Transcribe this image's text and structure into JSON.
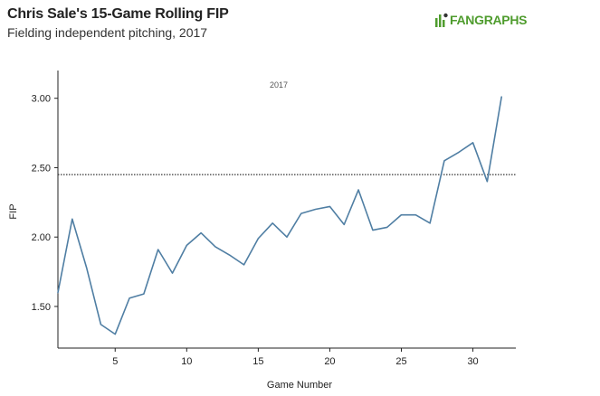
{
  "header": {
    "title": "Chris Sale's 15-Game Rolling FIP",
    "subtitle": "Fielding independent pitching, 2017",
    "brand": "FANGRAPHS",
    "brand_icon": "fangraphs-logo-icon"
  },
  "chart_data": {
    "type": "line",
    "title": "Chris Sale's 15-Game Rolling FIP",
    "subtitle": "Fielding independent pitching, 2017",
    "xlabel": "Game Number",
    "ylabel": "FIP",
    "xlim": [
      1,
      33
    ],
    "ylim": [
      1.2,
      3.2
    ],
    "xticks": [
      5,
      10,
      15,
      20,
      25,
      30
    ],
    "xtick_labels": [
      "5",
      "10",
      "15",
      "20",
      "25",
      "30"
    ],
    "yticks": [
      1.5,
      2.0,
      2.5,
      3.0
    ],
    "ytick_labels": [
      "1.50",
      "2.00",
      "2.50",
      "3.00"
    ],
    "annotation": "2017",
    "reference_line": {
      "y": 2.45,
      "style": "dotted"
    },
    "grid": false,
    "line_color": "#4f7ea3",
    "series": [
      {
        "x": [
          1,
          2,
          3,
          4,
          5,
          6,
          7,
          8,
          9,
          10,
          11,
          12,
          13,
          14,
          15,
          16,
          17,
          18,
          19,
          20,
          21,
          22,
          23,
          24,
          25,
          26,
          27,
          28,
          29,
          30,
          31,
          32
        ],
        "values": [
          1.6,
          2.13,
          1.78,
          1.37,
          1.3,
          1.56,
          1.59,
          1.91,
          1.74,
          1.94,
          2.03,
          1.93,
          1.87,
          1.8,
          1.99,
          2.1,
          2.0,
          2.17,
          2.2,
          2.22,
          2.09,
          2.34,
          2.05,
          2.07,
          2.16,
          2.16,
          2.1,
          2.55,
          2.61,
          2.68,
          2.4,
          3.01
        ]
      }
    ]
  }
}
